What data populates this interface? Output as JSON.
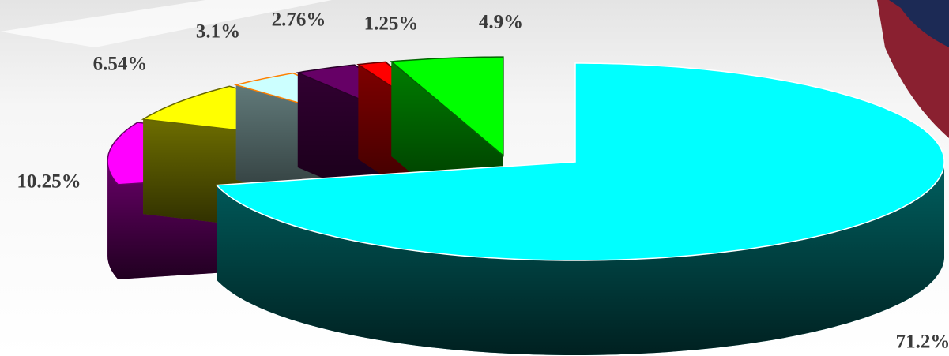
{
  "chart_data": {
    "type": "pie",
    "values": [
      71.2,
      10.25,
      6.54,
      3.1,
      2.76,
      1.25,
      4.9
    ],
    "value_labels": [
      "71.2%",
      "10.25%",
      "6.54%",
      "3.1%",
      "2.76%",
      "1.25%",
      "4.9%"
    ],
    "colors": [
      "#00ffff",
      "#ff00ff",
      "#ffff00",
      "#ccffff",
      "#660066",
      "#ff0000",
      "#00ff00"
    ]
  }
}
